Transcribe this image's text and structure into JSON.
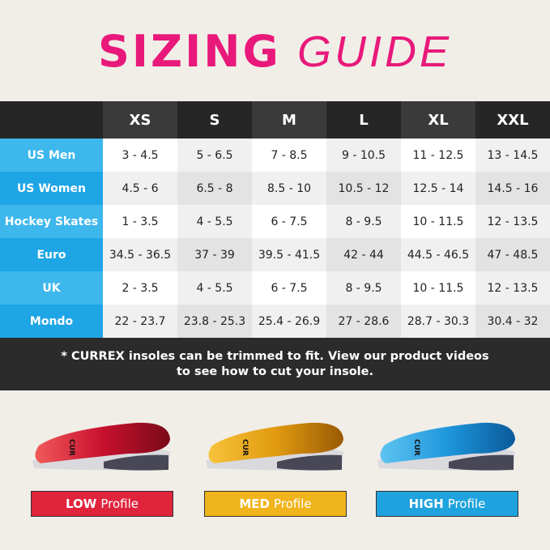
{
  "title": {
    "bold": "SIZING",
    "light": "GUIDE",
    "color": "#e8197a"
  },
  "table": {
    "sizes": [
      "XS",
      "S",
      "M",
      "L",
      "XL",
      "XXL"
    ],
    "rows": [
      {
        "label": "US Men",
        "values": [
          "3 - 4.5",
          "5 - 6.5",
          "7 - 8.5",
          "9 - 10.5",
          "11 - 12.5",
          "13 - 14.5"
        ]
      },
      {
        "label": "US Women",
        "values": [
          "4.5 - 6",
          "6.5 - 8",
          "8.5 - 10",
          "10.5 - 12",
          "12.5 - 14",
          "14.5 - 16"
        ]
      },
      {
        "label": "Hockey Skates",
        "values": [
          "1 - 3.5",
          "4 - 5.5",
          "6 - 7.5",
          "8 - 9.5",
          "10 - 11.5",
          "12 - 13.5"
        ]
      },
      {
        "label": "Euro",
        "values": [
          "34.5 - 36.5",
          "37 - 39",
          "39.5 - 41.5",
          "42 - 44",
          "44.5 - 46.5",
          "47 - 48.5"
        ]
      },
      {
        "label": "UK",
        "values": [
          "2 - 3.5",
          "4 - 5.5",
          "6 - 7.5",
          "8 - 9.5",
          "10 - 11.5",
          "12 - 13.5"
        ]
      },
      {
        "label": "Mondo",
        "values": [
          "22 - 23.7",
          "23.8 - 25.3",
          "25.4 - 26.9",
          "27 - 28.6",
          "28.7 - 30.3",
          "30.4 - 32"
        ]
      }
    ]
  },
  "note": {
    "line1": "* CURREX insoles can be trimmed to fit. View our product videos",
    "line2": "to see how to cut your insole."
  },
  "profiles": [
    {
      "bold": "LOW",
      "label": "Profile",
      "color": "#e0243c",
      "brand": "CURREX"
    },
    {
      "bold": "MED",
      "label": "Profile",
      "color": "#f0b41c",
      "brand": "CURREX"
    },
    {
      "bold": "HIGH",
      "label": "Profile",
      "color": "#1fa3de",
      "brand": "CURREX"
    }
  ]
}
